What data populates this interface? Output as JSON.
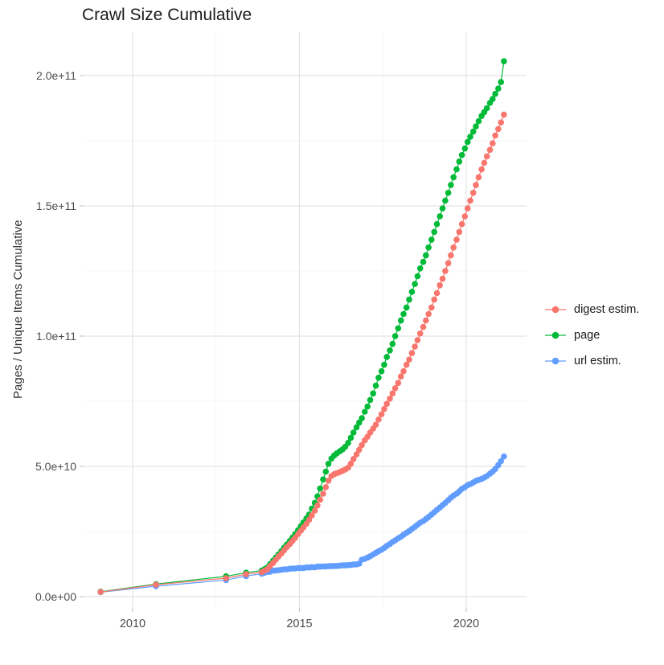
{
  "title": "Crawl Size Cumulative",
  "axes": {
    "y_label": "Pages / Unique Items Cumulative",
    "x_tick_labels": [
      "2010",
      "2015",
      "2020"
    ],
    "y_tick_labels": [
      "0.0e+00",
      "5.0e+10",
      "1.0e+11",
      "1.5e+11",
      "2.0e+11"
    ]
  },
  "legend": {
    "items": [
      {
        "label": "digest estim.",
        "color": "#F8766D"
      },
      {
        "label": "page",
        "color": "#00BA38"
      },
      {
        "label": "url estim.",
        "color": "#619CFF"
      }
    ]
  },
  "chart_data": {
    "type": "scatter",
    "title": "Crawl Size Cumulative",
    "xlabel": "",
    "ylabel": "Pages / Unique Items Cumulative",
    "grid": true,
    "legend_position": "right",
    "xlim": [
      2008.55,
      2021.8
    ],
    "ylim": [
      0,
      216000000000.0
    ],
    "value_scale": 10000000000.0,
    "x_ticks": [
      2010,
      2015,
      2020
    ],
    "x_tick_labels": [
      "2010",
      "2015",
      "2020"
    ],
    "x_minor_ticks": [
      2012.5,
      2017.5
    ],
    "y_ticks_e10": [
      0,
      5,
      10,
      15,
      20
    ],
    "y_tick_labels": [
      "0.0e+00",
      "5.0e+10",
      "1.0e+11",
      "1.5e+11",
      "2.0e+11"
    ],
    "y_minor_ticks_e10": [
      2.5,
      7.5,
      12.5,
      17.5
    ],
    "series": [
      {
        "name": "digest estim.",
        "color": "#F8766D",
        "points_year_value_e10": [
          [
            2009.04,
            0.18
          ],
          [
            2010.7,
            0.46
          ],
          [
            2012.8,
            0.71
          ],
          [
            2013.4,
            0.86
          ],
          [
            2013.87,
            0.94
          ],
          [
            2013.96,
            1.0
          ],
          [
            2014.04,
            1.06
          ],
          [
            2014.12,
            1.18
          ],
          [
            2014.21,
            1.3
          ],
          [
            2014.29,
            1.42
          ],
          [
            2014.37,
            1.54
          ],
          [
            2014.46,
            1.66
          ],
          [
            2014.54,
            1.78
          ],
          [
            2014.62,
            1.9
          ],
          [
            2014.71,
            2.02
          ],
          [
            2014.79,
            2.14
          ],
          [
            2014.87,
            2.26
          ],
          [
            2014.96,
            2.4
          ],
          [
            2015.04,
            2.53
          ],
          [
            2015.12,
            2.66
          ],
          [
            2015.21,
            2.8
          ],
          [
            2015.29,
            2.95
          ],
          [
            2015.37,
            3.12
          ],
          [
            2015.46,
            3.3
          ],
          [
            2015.54,
            3.5
          ],
          [
            2015.62,
            3.72
          ],
          [
            2015.71,
            3.95
          ],
          [
            2015.79,
            4.2
          ],
          [
            2015.87,
            4.45
          ],
          [
            2015.96,
            4.63
          ],
          [
            2016.04,
            4.7
          ],
          [
            2016.12,
            4.74
          ],
          [
            2016.21,
            4.78
          ],
          [
            2016.29,
            4.83
          ],
          [
            2016.37,
            4.88
          ],
          [
            2016.46,
            4.95
          ],
          [
            2016.54,
            5.1
          ],
          [
            2016.62,
            5.28
          ],
          [
            2016.71,
            5.46
          ],
          [
            2016.79,
            5.64
          ],
          [
            2016.87,
            5.82
          ],
          [
            2016.96,
            6.0
          ],
          [
            2017.04,
            6.14
          ],
          [
            2017.12,
            6.3
          ],
          [
            2017.21,
            6.45
          ],
          [
            2017.29,
            6.6
          ],
          [
            2017.37,
            6.8
          ],
          [
            2017.46,
            7.0
          ],
          [
            2017.54,
            7.2
          ],
          [
            2017.62,
            7.4
          ],
          [
            2017.71,
            7.6
          ],
          [
            2017.79,
            7.8
          ],
          [
            2017.87,
            8.0
          ],
          [
            2017.96,
            8.2
          ],
          [
            2018.04,
            8.45
          ],
          [
            2018.12,
            8.65
          ],
          [
            2018.21,
            8.9
          ],
          [
            2018.29,
            9.1
          ],
          [
            2018.37,
            9.35
          ],
          [
            2018.46,
            9.6
          ],
          [
            2018.54,
            9.85
          ],
          [
            2018.62,
            10.1
          ],
          [
            2018.71,
            10.35
          ],
          [
            2018.79,
            10.6
          ],
          [
            2018.87,
            10.85
          ],
          [
            2018.96,
            11.1
          ],
          [
            2019.04,
            11.4
          ],
          [
            2019.12,
            11.65
          ],
          [
            2019.21,
            11.95
          ],
          [
            2019.29,
            12.2
          ],
          [
            2019.37,
            12.5
          ],
          [
            2019.46,
            12.8
          ],
          [
            2019.54,
            13.1
          ],
          [
            2019.62,
            13.4
          ],
          [
            2019.71,
            13.7
          ],
          [
            2019.79,
            14.0
          ],
          [
            2019.87,
            14.3
          ],
          [
            2019.96,
            14.6
          ],
          [
            2020.04,
            14.9
          ],
          [
            2020.12,
            15.2
          ],
          [
            2020.21,
            15.5
          ],
          [
            2020.29,
            15.8
          ],
          [
            2020.37,
            16.1
          ],
          [
            2020.46,
            16.4
          ],
          [
            2020.54,
            16.65
          ],
          [
            2020.62,
            16.9
          ],
          [
            2020.71,
            17.15
          ],
          [
            2020.79,
            17.4
          ],
          [
            2020.87,
            17.7
          ],
          [
            2020.96,
            17.95
          ],
          [
            2021.04,
            18.2
          ],
          [
            2021.13,
            18.5
          ]
        ]
      },
      {
        "name": "page",
        "color": "#00BA38",
        "points_year_value_e10": [
          [
            2009.04,
            0.19
          ],
          [
            2010.7,
            0.48
          ],
          [
            2012.8,
            0.78
          ],
          [
            2013.4,
            0.92
          ],
          [
            2013.87,
            1.0
          ],
          [
            2013.96,
            1.06
          ],
          [
            2014.04,
            1.12
          ],
          [
            2014.12,
            1.25
          ],
          [
            2014.21,
            1.38
          ],
          [
            2014.29,
            1.5
          ],
          [
            2014.37,
            1.62
          ],
          [
            2014.46,
            1.75
          ],
          [
            2014.54,
            1.88
          ],
          [
            2014.62,
            2.0
          ],
          [
            2014.71,
            2.14
          ],
          [
            2014.79,
            2.27
          ],
          [
            2014.87,
            2.4
          ],
          [
            2014.96,
            2.55
          ],
          [
            2015.04,
            2.7
          ],
          [
            2015.12,
            2.85
          ],
          [
            2015.21,
            3.0
          ],
          [
            2015.29,
            3.15
          ],
          [
            2015.37,
            3.38
          ],
          [
            2015.46,
            3.6
          ],
          [
            2015.54,
            3.85
          ],
          [
            2015.62,
            4.15
          ],
          [
            2015.71,
            4.5
          ],
          [
            2015.79,
            4.8
          ],
          [
            2015.87,
            5.1
          ],
          [
            2015.96,
            5.3
          ],
          [
            2016.04,
            5.42
          ],
          [
            2016.12,
            5.5
          ],
          [
            2016.21,
            5.58
          ],
          [
            2016.29,
            5.65
          ],
          [
            2016.37,
            5.75
          ],
          [
            2016.46,
            5.9
          ],
          [
            2016.54,
            6.1
          ],
          [
            2016.62,
            6.3
          ],
          [
            2016.71,
            6.5
          ],
          [
            2016.79,
            6.68
          ],
          [
            2016.87,
            6.85
          ],
          [
            2016.96,
            7.1
          ],
          [
            2017.04,
            7.3
          ],
          [
            2017.12,
            7.55
          ],
          [
            2017.21,
            7.8
          ],
          [
            2017.29,
            8.1
          ],
          [
            2017.37,
            8.4
          ],
          [
            2017.46,
            8.65
          ],
          [
            2017.54,
            8.9
          ],
          [
            2017.62,
            9.2
          ],
          [
            2017.71,
            9.45
          ],
          [
            2017.79,
            9.7
          ],
          [
            2017.87,
            10.0
          ],
          [
            2017.96,
            10.3
          ],
          [
            2018.04,
            10.6
          ],
          [
            2018.12,
            10.85
          ],
          [
            2018.21,
            11.1
          ],
          [
            2018.29,
            11.4
          ],
          [
            2018.37,
            11.7
          ],
          [
            2018.46,
            12.0
          ],
          [
            2018.54,
            12.3
          ],
          [
            2018.62,
            12.6
          ],
          [
            2018.71,
            12.85
          ],
          [
            2018.79,
            13.1
          ],
          [
            2018.87,
            13.4
          ],
          [
            2018.96,
            13.7
          ],
          [
            2019.04,
            14.0
          ],
          [
            2019.12,
            14.3
          ],
          [
            2019.21,
            14.6
          ],
          [
            2019.29,
            14.9
          ],
          [
            2019.37,
            15.2
          ],
          [
            2019.46,
            15.5
          ],
          [
            2019.54,
            15.8
          ],
          [
            2019.62,
            16.1
          ],
          [
            2019.71,
            16.4
          ],
          [
            2019.79,
            16.7
          ],
          [
            2019.87,
            16.95
          ],
          [
            2019.96,
            17.2
          ],
          [
            2020.04,
            17.45
          ],
          [
            2020.12,
            17.65
          ],
          [
            2020.21,
            17.85
          ],
          [
            2020.29,
            18.05
          ],
          [
            2020.37,
            18.25
          ],
          [
            2020.46,
            18.45
          ],
          [
            2020.54,
            18.6
          ],
          [
            2020.62,
            18.75
          ],
          [
            2020.71,
            18.95
          ],
          [
            2020.79,
            19.1
          ],
          [
            2020.87,
            19.3
          ],
          [
            2020.96,
            19.5
          ],
          [
            2021.04,
            19.75
          ],
          [
            2021.13,
            20.55
          ]
        ]
      },
      {
        "name": "url estim.",
        "color": "#619CFF",
        "points_year_value_e10": [
          [
            2009.04,
            0.17
          ],
          [
            2010.7,
            0.4
          ],
          [
            2012.8,
            0.64
          ],
          [
            2013.4,
            0.79
          ],
          [
            2013.87,
            0.88
          ],
          [
            2013.96,
            0.92
          ],
          [
            2014.04,
            0.95
          ],
          [
            2014.12,
            0.96
          ],
          [
            2014.21,
            1.0
          ],
          [
            2014.29,
            1.0
          ],
          [
            2014.37,
            1.02
          ],
          [
            2014.46,
            1.03
          ],
          [
            2014.54,
            1.05
          ],
          [
            2014.62,
            1.05
          ],
          [
            2014.71,
            1.07
          ],
          [
            2014.79,
            1.08
          ],
          [
            2014.87,
            1.08
          ],
          [
            2014.96,
            1.1
          ],
          [
            2015.04,
            1.1
          ],
          [
            2015.12,
            1.1
          ],
          [
            2015.21,
            1.12
          ],
          [
            2015.29,
            1.12
          ],
          [
            2015.37,
            1.13
          ],
          [
            2015.46,
            1.13
          ],
          [
            2015.54,
            1.15
          ],
          [
            2015.62,
            1.15
          ],
          [
            2015.71,
            1.16
          ],
          [
            2015.79,
            1.16
          ],
          [
            2015.87,
            1.17
          ],
          [
            2015.96,
            1.17
          ],
          [
            2016.04,
            1.18
          ],
          [
            2016.12,
            1.18
          ],
          [
            2016.21,
            1.19
          ],
          [
            2016.29,
            1.2
          ],
          [
            2016.37,
            1.2
          ],
          [
            2016.46,
            1.21
          ],
          [
            2016.54,
            1.22
          ],
          [
            2016.62,
            1.23
          ],
          [
            2016.71,
            1.24
          ],
          [
            2016.79,
            1.27
          ],
          [
            2016.87,
            1.42
          ],
          [
            2016.96,
            1.45
          ],
          [
            2017.04,
            1.5
          ],
          [
            2017.12,
            1.55
          ],
          [
            2017.21,
            1.62
          ],
          [
            2017.29,
            1.68
          ],
          [
            2017.37,
            1.74
          ],
          [
            2017.46,
            1.8
          ],
          [
            2017.54,
            1.87
          ],
          [
            2017.62,
            1.95
          ],
          [
            2017.71,
            2.02
          ],
          [
            2017.79,
            2.1
          ],
          [
            2017.87,
            2.16
          ],
          [
            2017.96,
            2.24
          ],
          [
            2018.04,
            2.3
          ],
          [
            2018.12,
            2.38
          ],
          [
            2018.21,
            2.45
          ],
          [
            2018.29,
            2.52
          ],
          [
            2018.37,
            2.6
          ],
          [
            2018.46,
            2.68
          ],
          [
            2018.54,
            2.76
          ],
          [
            2018.62,
            2.84
          ],
          [
            2018.71,
            2.9
          ],
          [
            2018.79,
            2.98
          ],
          [
            2018.87,
            3.06
          ],
          [
            2018.96,
            3.15
          ],
          [
            2019.04,
            3.24
          ],
          [
            2019.12,
            3.33
          ],
          [
            2019.21,
            3.42
          ],
          [
            2019.29,
            3.51
          ],
          [
            2019.37,
            3.6
          ],
          [
            2019.46,
            3.7
          ],
          [
            2019.54,
            3.8
          ],
          [
            2019.62,
            3.88
          ],
          [
            2019.71,
            3.95
          ],
          [
            2019.79,
            4.04
          ],
          [
            2019.87,
            4.14
          ],
          [
            2019.96,
            4.2
          ],
          [
            2020.04,
            4.28
          ],
          [
            2020.12,
            4.32
          ],
          [
            2020.21,
            4.38
          ],
          [
            2020.29,
            4.44
          ],
          [
            2020.37,
            4.48
          ],
          [
            2020.46,
            4.52
          ],
          [
            2020.54,
            4.57
          ],
          [
            2020.62,
            4.63
          ],
          [
            2020.71,
            4.72
          ],
          [
            2020.79,
            4.8
          ],
          [
            2020.87,
            4.9
          ],
          [
            2020.96,
            5.05
          ],
          [
            2021.04,
            5.2
          ],
          [
            2021.13,
            5.38
          ]
        ]
      }
    ]
  }
}
